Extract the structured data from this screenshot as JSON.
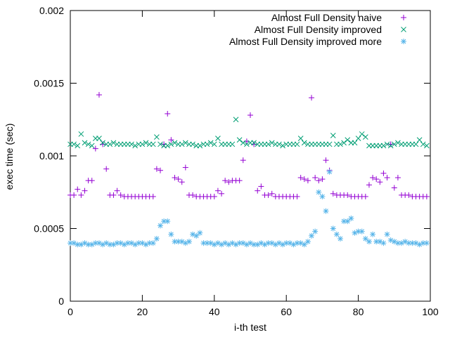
{
  "chart_data": {
    "type": "scatter",
    "title": "",
    "xlabel": "i-th test",
    "ylabel": "exec time (sec)",
    "xlim": [
      0,
      100
    ],
    "ylim": [
      0,
      0.002
    ],
    "x_ticks": [
      0,
      20,
      40,
      60,
      80,
      100
    ],
    "y_ticks": [
      0,
      0.0005,
      0.001,
      0.0015,
      0.002
    ],
    "x_tick_labels": [
      "0",
      "20",
      "40",
      "60",
      "80",
      "100"
    ],
    "y_tick_labels": [
      "0",
      "0.0005",
      "0.001",
      "0.0015",
      "0.002"
    ],
    "grid": false,
    "legend_position": "top-right",
    "series": [
      {
        "name": "Almost Full Density naive",
        "marker": "plus",
        "color": "#9400d3",
        "x": [
          0,
          1,
          2,
          3,
          4,
          5,
          6,
          7,
          8,
          9,
          10,
          11,
          12,
          13,
          14,
          15,
          16,
          17,
          18,
          19,
          20,
          21,
          22,
          23,
          24,
          25,
          26,
          27,
          28,
          29,
          30,
          31,
          32,
          33,
          34,
          35,
          36,
          37,
          38,
          39,
          40,
          41,
          42,
          43,
          44,
          45,
          46,
          47,
          48,
          49,
          50,
          51,
          52,
          53,
          54,
          55,
          56,
          57,
          58,
          59,
          60,
          61,
          62,
          63,
          64,
          65,
          66,
          67,
          68,
          69,
          70,
          71,
          72,
          73,
          74,
          75,
          76,
          77,
          78,
          79,
          80,
          81,
          82,
          83,
          84,
          85,
          86,
          87,
          88,
          89,
          90,
          91,
          92,
          93,
          94,
          95,
          96,
          97,
          98,
          99
        ],
        "y": [
          0.00073,
          0.00073,
          0.00077,
          0.00073,
          0.00076,
          0.00083,
          0.00083,
          0.00105,
          0.00142,
          0.00108,
          0.00091,
          0.00073,
          0.00073,
          0.00076,
          0.00073,
          0.00072,
          0.00072,
          0.00072,
          0.00072,
          0.00072,
          0.00072,
          0.00072,
          0.00072,
          0.00072,
          0.00091,
          0.0009,
          0.00108,
          0.00129,
          0.00111,
          0.00085,
          0.00084,
          0.00082,
          0.00092,
          0.00073,
          0.00073,
          0.00072,
          0.00072,
          0.00072,
          0.00072,
          0.00072,
          0.00072,
          0.00076,
          0.00074,
          0.00083,
          0.00082,
          0.00083,
          0.00083,
          0.00083,
          0.00097,
          0.0011,
          0.00128,
          0.00108,
          0.00076,
          0.00079,
          0.00073,
          0.00073,
          0.00074,
          0.00072,
          0.00072,
          0.00072,
          0.00072,
          0.00072,
          0.00072,
          0.00072,
          0.00085,
          0.00084,
          0.00083,
          0.0014,
          0.00085,
          0.00083,
          0.00084,
          0.00097,
          0.0009,
          0.00074,
          0.00073,
          0.00073,
          0.00073,
          0.00073,
          0.00072,
          0.00072,
          0.00072,
          0.00072,
          0.00072,
          0.0008,
          0.00085,
          0.00084,
          0.00082,
          0.00088,
          0.00085,
          0.00108,
          0.00078,
          0.00085,
          0.00073,
          0.00073,
          0.00073,
          0.00072,
          0.00072,
          0.00072,
          0.00072,
          0.00072
        ]
      },
      {
        "name": "Almost Full Density improved",
        "marker": "cross",
        "color": "#009e73",
        "x": [
          0,
          1,
          2,
          3,
          4,
          5,
          6,
          7,
          8,
          9,
          10,
          11,
          12,
          13,
          14,
          15,
          16,
          17,
          18,
          19,
          20,
          21,
          22,
          23,
          24,
          25,
          26,
          27,
          28,
          29,
          30,
          31,
          32,
          33,
          34,
          35,
          36,
          37,
          38,
          39,
          40,
          41,
          42,
          43,
          44,
          45,
          46,
          47,
          48,
          49,
          50,
          51,
          52,
          53,
          54,
          55,
          56,
          57,
          58,
          59,
          60,
          61,
          62,
          63,
          64,
          65,
          66,
          67,
          68,
          69,
          70,
          71,
          72,
          73,
          74,
          75,
          76,
          77,
          78,
          79,
          80,
          81,
          82,
          83,
          84,
          85,
          86,
          87,
          88,
          89,
          90,
          91,
          92,
          93,
          94,
          95,
          96,
          97,
          98,
          99
        ],
        "y": [
          0.00108,
          0.00108,
          0.00107,
          0.00115,
          0.00109,
          0.00108,
          0.00107,
          0.00112,
          0.00112,
          0.00109,
          0.00108,
          0.00108,
          0.00109,
          0.00108,
          0.00108,
          0.00108,
          0.00108,
          0.00108,
          0.00107,
          0.00108,
          0.00108,
          0.00109,
          0.00108,
          0.00108,
          0.00113,
          0.00108,
          0.00107,
          0.00107,
          0.00108,
          0.00109,
          0.00108,
          0.00108,
          0.00109,
          0.00108,
          0.00108,
          0.00107,
          0.00107,
          0.00108,
          0.00108,
          0.00109,
          0.00108,
          0.00112,
          0.00108,
          0.00108,
          0.00108,
          0.00108,
          0.00125,
          0.00111,
          0.00109,
          0.00108,
          0.00109,
          0.00109,
          0.00108,
          0.00108,
          0.00108,
          0.00108,
          0.00109,
          0.00108,
          0.00108,
          0.00107,
          0.00108,
          0.00108,
          0.00108,
          0.00108,
          0.00112,
          0.00109,
          0.00108,
          0.00108,
          0.00108,
          0.00108,
          0.00108,
          0.00108,
          0.00108,
          0.00114,
          0.00108,
          0.00108,
          0.00109,
          0.00111,
          0.00109,
          0.00109,
          0.00112,
          0.00115,
          0.00113,
          0.00107,
          0.00107,
          0.00107,
          0.00107,
          0.00107,
          0.00108,
          0.00107,
          0.00108,
          0.00109,
          0.00108,
          0.00108,
          0.00108,
          0.00108,
          0.00108,
          0.00111,
          0.00108,
          0.00107
        ]
      },
      {
        "name": "Almost Full Density improved more",
        "marker": "star",
        "color": "#56b4e9",
        "x": [
          0,
          1,
          2,
          3,
          4,
          5,
          6,
          7,
          8,
          9,
          10,
          11,
          12,
          13,
          14,
          15,
          16,
          17,
          18,
          19,
          20,
          21,
          22,
          23,
          24,
          25,
          26,
          27,
          28,
          29,
          30,
          31,
          32,
          33,
          34,
          35,
          36,
          37,
          38,
          39,
          40,
          41,
          42,
          43,
          44,
          45,
          46,
          47,
          48,
          49,
          50,
          51,
          52,
          53,
          54,
          55,
          56,
          57,
          58,
          59,
          60,
          61,
          62,
          63,
          64,
          65,
          66,
          67,
          68,
          69,
          70,
          71,
          72,
          73,
          74,
          75,
          76,
          77,
          78,
          79,
          80,
          81,
          82,
          83,
          84,
          85,
          86,
          87,
          88,
          89,
          90,
          91,
          92,
          93,
          94,
          95,
          96,
          97,
          98,
          99
        ],
        "y": [
          0.0004,
          0.0004,
          0.00039,
          0.00039,
          0.0004,
          0.00039,
          0.00039,
          0.0004,
          0.0004,
          0.00039,
          0.0004,
          0.00039,
          0.00039,
          0.0004,
          0.0004,
          0.00039,
          0.0004,
          0.0004,
          0.00039,
          0.0004,
          0.0004,
          0.00039,
          0.0004,
          0.0004,
          0.00043,
          0.00052,
          0.00055,
          0.00055,
          0.00046,
          0.00041,
          0.00041,
          0.00041,
          0.0004,
          0.00041,
          0.00046,
          0.00045,
          0.00047,
          0.0004,
          0.0004,
          0.0004,
          0.00039,
          0.0004,
          0.00039,
          0.0004,
          0.00039,
          0.0004,
          0.00039,
          0.0004,
          0.0004,
          0.00039,
          0.0004,
          0.00039,
          0.00039,
          0.0004,
          0.00039,
          0.0004,
          0.0004,
          0.00039,
          0.0004,
          0.00039,
          0.0004,
          0.0004,
          0.00039,
          0.0004,
          0.0004,
          0.00039,
          0.00041,
          0.00045,
          0.00048,
          0.00075,
          0.00072,
          0.00062,
          0.00089,
          0.0005,
          0.00046,
          0.00043,
          0.00055,
          0.00055,
          0.00057,
          0.00047,
          0.00048,
          0.00048,
          0.00043,
          0.00041,
          0.00046,
          0.00041,
          0.00041,
          0.0004,
          0.00046,
          0.00042,
          0.00041,
          0.0004,
          0.0004,
          0.00041,
          0.0004,
          0.0004,
          0.0004,
          0.00039,
          0.0004,
          0.0004
        ]
      }
    ]
  }
}
